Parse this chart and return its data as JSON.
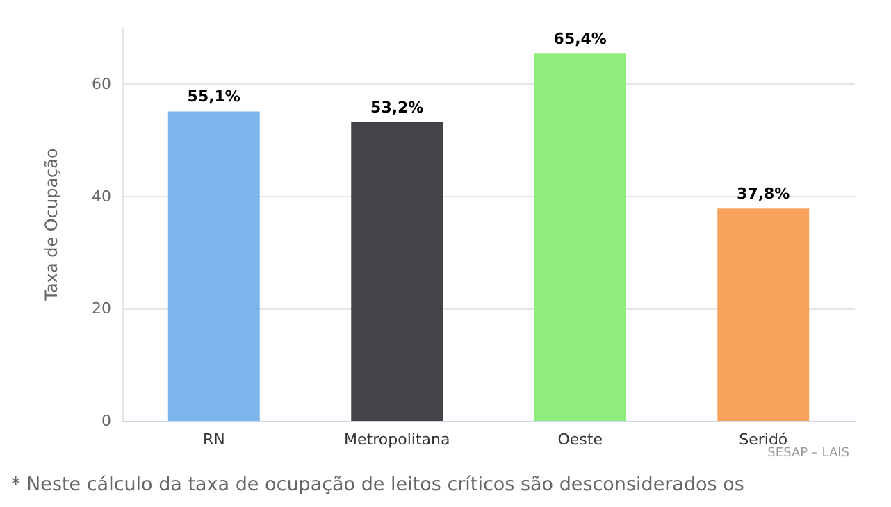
{
  "chart_data": {
    "type": "bar",
    "ylabel": "Taxa de Ocupação",
    "categories": [
      "RN",
      "Metropolitana",
      "Oeste",
      "Seridó"
    ],
    "values": [
      55.1,
      53.2,
      65.4,
      37.8
    ],
    "colors": [
      "#7cb5ec",
      "#434348",
      "#90ed7d",
      "#f7a35c"
    ],
    "value_labels": [
      "55,1%",
      "53,2%",
      "65,4%",
      "37,8%"
    ],
    "ylim": [
      0,
      70
    ],
    "yticks": [
      0,
      20,
      40,
      60
    ],
    "grid": "y",
    "annotations": [
      "SESAP – LAIS",
      "* Neste cálculo da taxa de ocupação de leitos críticos são desconsiderados os"
    ]
  }
}
